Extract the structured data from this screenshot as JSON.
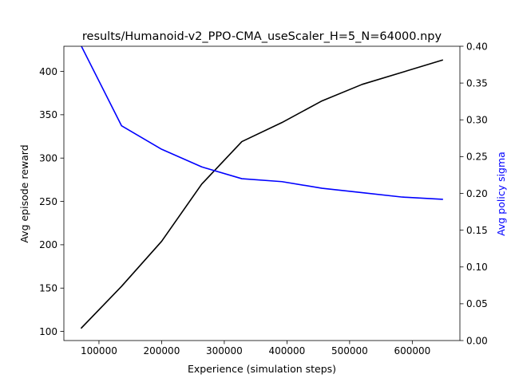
{
  "chart_data": {
    "type": "line",
    "title": "results/Humanoid-v2_PPO-CMA_useScaler_H=5_N=64000.npy",
    "xlabel": "Experience (simulation steps)",
    "ylabel_left": "Avg episode reward",
    "ylabel_right": "Avg policy sigma",
    "xlim": [
      44000,
      676000
    ],
    "ylim_left": [
      89.5,
      429
    ],
    "ylim_right": [
      0.0,
      0.4
    ],
    "grid": false,
    "x_ticks": [
      100000,
      200000,
      300000,
      400000,
      500000,
      600000
    ],
    "x_tick_labels": [
      "100000",
      "200000",
      "300000",
      "400000",
      "500000",
      "600000"
    ],
    "y_left_ticks": [
      100,
      150,
      200,
      250,
      300,
      350,
      400
    ],
    "y_left_tick_labels": [
      "100",
      "150",
      "200",
      "250",
      "300",
      "350",
      "400"
    ],
    "y_right_ticks": [
      0.0,
      0.05,
      0.1,
      0.15,
      0.2,
      0.25,
      0.3,
      0.35,
      0.4
    ],
    "y_right_tick_labels": [
      "0.00",
      "0.05",
      "0.10",
      "0.15",
      "0.20",
      "0.25",
      "0.30",
      "0.35",
      "0.40"
    ],
    "x": [
      72000,
      136000,
      200000,
      264000,
      328000,
      392000,
      456000,
      520000,
      584000,
      648000
    ],
    "series": [
      {
        "axis": "left",
        "color": "#000000",
        "values": [
          104,
          152,
          204,
          270,
          319,
          341,
          366,
          385,
          399,
          413
        ]
      },
      {
        "axis": "right",
        "color": "#0000ff",
        "values": [
          0.4,
          0.292,
          0.26,
          0.236,
          0.22,
          0.216,
          0.207,
          0.201,
          0.195,
          0.192
        ]
      }
    ],
    "colors": {
      "axis": "#000000",
      "right_label": "#0000ff"
    }
  }
}
